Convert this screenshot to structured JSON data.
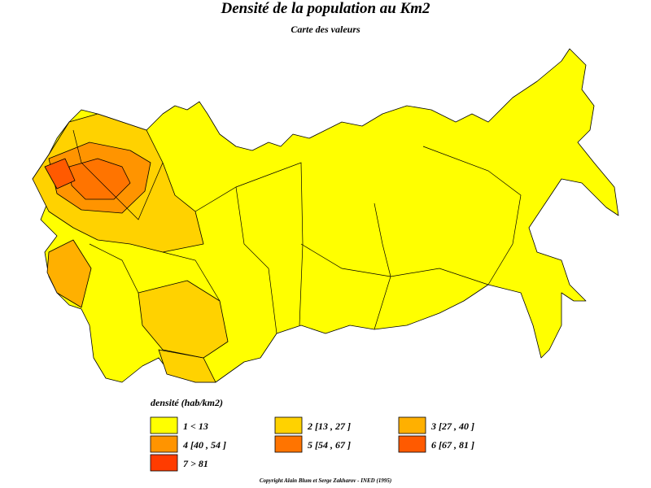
{
  "title": "Densité de la population au Km2",
  "subtitle": "Carte des valeurs",
  "legend": {
    "title": "densité (hab/km2)",
    "items": [
      {
        "label": "1 < 13",
        "color": "#ffff00"
      },
      {
        "label": "2 [13 , 27 ]",
        "color": "#ffd200"
      },
      {
        "label": "3 [27 , 40 ]",
        "color": "#ffb000"
      },
      {
        "label": "4 [40 , 54 ]",
        "color": "#ff9400"
      },
      {
        "label": "5 [54 , 67 ]",
        "color": "#ff7400"
      },
      {
        "label": "6 [67 , 81 ]",
        "color": "#ff5a00"
      },
      {
        "label": "7 > 81",
        "color": "#ff3c00"
      }
    ]
  },
  "copyright": "Copyright Alain Blum et Serge Zakharov - INED (1995)"
}
